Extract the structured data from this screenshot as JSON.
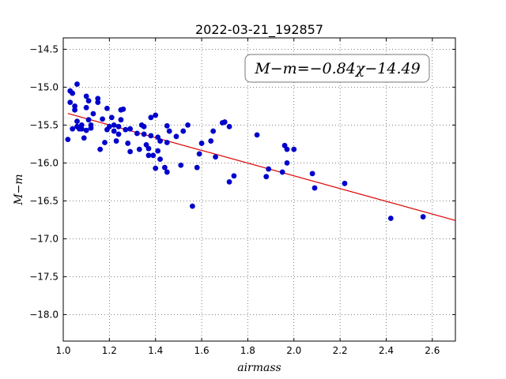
{
  "chart_data": {
    "type": "scatter",
    "title": "2022-03-21_192857",
    "xlabel": "airmass",
    "ylabel": "M−m",
    "xlim": [
      1.0,
      2.7
    ],
    "ylim": [
      -18.35,
      -14.35
    ],
    "xticks": [
      1.0,
      1.2,
      1.4,
      1.6,
      1.8,
      2.0,
      2.2,
      2.4,
      2.6
    ],
    "xtick_labels": [
      "1.0",
      "1.2",
      "1.4",
      "1.6",
      "1.8",
      "2.0",
      "2.2",
      "2.4",
      "2.6"
    ],
    "yticks": [
      -14.5,
      -15.0,
      -15.5,
      -16.0,
      -16.5,
      -17.0,
      -17.5,
      -18.0
    ],
    "ytick_labels": [
      "−14.5",
      "−15.0",
      "−15.5",
      "−16.0",
      "−16.5",
      "−17.0",
      "−17.5",
      "−18.0"
    ],
    "grid": true,
    "annotation": "M−m=−0.84χ−14.49",
    "fit": {
      "slope": -0.84,
      "intercept": -14.49,
      "color": "#dd0000"
    },
    "point_color": "#0000cc",
    "points": [
      [
        1.02,
        -15.69
      ],
      [
        1.03,
        -15.05
      ],
      [
        1.03,
        -15.2
      ],
      [
        1.04,
        -15.08
      ],
      [
        1.04,
        -15.55
      ],
      [
        1.05,
        -15.25
      ],
      [
        1.05,
        -15.3
      ],
      [
        1.06,
        -14.96
      ],
      [
        1.06,
        -15.45
      ],
      [
        1.06,
        -15.52
      ],
      [
        1.07,
        -15.55
      ],
      [
        1.08,
        -15.5
      ],
      [
        1.08,
        -15.55
      ],
      [
        1.09,
        -15.67
      ],
      [
        1.1,
        -15.12
      ],
      [
        1.1,
        -15.27
      ],
      [
        1.1,
        -15.57
      ],
      [
        1.11,
        -15.18
      ],
      [
        1.11,
        -15.43
      ],
      [
        1.12,
        -15.5
      ],
      [
        1.12,
        -15.54
      ],
      [
        1.13,
        -15.35
      ],
      [
        1.15,
        -15.2
      ],
      [
        1.15,
        -15.15
      ],
      [
        1.16,
        -15.82
      ],
      [
        1.17,
        -15.42
      ],
      [
        1.18,
        -15.73
      ],
      [
        1.19,
        -15.28
      ],
      [
        1.19,
        -15.56
      ],
      [
        1.2,
        -15.52
      ],
      [
        1.21,
        -15.4
      ],
      [
        1.22,
        -15.5
      ],
      [
        1.22,
        -15.58
      ],
      [
        1.23,
        -15.71
      ],
      [
        1.24,
        -15.52
      ],
      [
        1.24,
        -15.62
      ],
      [
        1.25,
        -15.3
      ],
      [
        1.25,
        -15.43
      ],
      [
        1.26,
        -15.29
      ],
      [
        1.27,
        -15.56
      ],
      [
        1.28,
        -15.74
      ],
      [
        1.29,
        -15.55
      ],
      [
        1.29,
        -15.85
      ],
      [
        1.32,
        -15.61
      ],
      [
        1.33,
        -15.82
      ],
      [
        1.34,
        -15.5
      ],
      [
        1.35,
        -15.52
      ],
      [
        1.35,
        -15.62
      ],
      [
        1.36,
        -15.76
      ],
      [
        1.37,
        -15.9
      ],
      [
        1.37,
        -15.81
      ],
      [
        1.38,
        -15.4
      ],
      [
        1.38,
        -15.64
      ],
      [
        1.39,
        -15.9
      ],
      [
        1.4,
        -15.37
      ],
      [
        1.4,
        -16.07
      ],
      [
        1.41,
        -15.66
      ],
      [
        1.41,
        -15.84
      ],
      [
        1.42,
        -15.71
      ],
      [
        1.42,
        -15.95
      ],
      [
        1.44,
        -16.06
      ],
      [
        1.45,
        -16.12
      ],
      [
        1.45,
        -15.51
      ],
      [
        1.45,
        -15.73
      ],
      [
        1.46,
        -15.58
      ],
      [
        1.49,
        -15.65
      ],
      [
        1.51,
        -16.03
      ],
      [
        1.52,
        -15.58
      ],
      [
        1.54,
        -15.5
      ],
      [
        1.56,
        -16.57
      ],
      [
        1.58,
        -16.06
      ],
      [
        1.59,
        -15.88
      ],
      [
        1.6,
        -15.74
      ],
      [
        1.64,
        -15.71
      ],
      [
        1.65,
        -15.58
      ],
      [
        1.66,
        -15.92
      ],
      [
        1.69,
        -15.47
      ],
      [
        1.7,
        -15.46
      ],
      [
        1.72,
        -15.52
      ],
      [
        1.72,
        -16.25
      ],
      [
        1.74,
        -16.17
      ],
      [
        1.84,
        -15.63
      ],
      [
        1.88,
        -16.18
      ],
      [
        1.89,
        -16.08
      ],
      [
        1.95,
        -16.12
      ],
      [
        1.96,
        -15.77
      ],
      [
        1.97,
        -15.82
      ],
      [
        1.97,
        -16.0
      ],
      [
        2.0,
        -15.82
      ],
      [
        2.08,
        -16.14
      ],
      [
        2.09,
        -16.33
      ],
      [
        2.22,
        -16.27
      ],
      [
        2.42,
        -16.73
      ],
      [
        2.56,
        -16.71
      ]
    ]
  }
}
